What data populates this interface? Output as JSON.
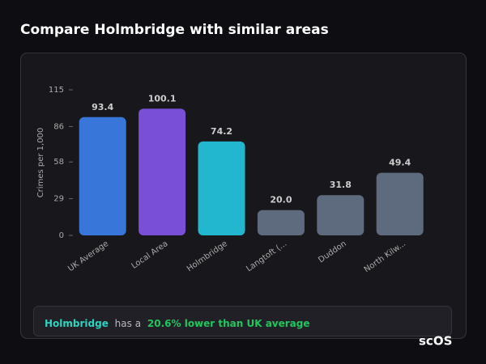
{
  "header": {
    "title": "Compare Holmbridge with similar areas"
  },
  "chart_data": {
    "type": "bar",
    "y_label": "Crimes per 1,000",
    "categories": [
      "UK Average",
      "Local Area",
      "Holmbridge",
      "Langtoft (...",
      "Duddon",
      "North Kilw..."
    ],
    "values": [
      93.4,
      100.1,
      74.2,
      20.0,
      31.8,
      49.4
    ],
    "value_labels": [
      "93.4",
      "100.1",
      "74.2",
      "20.0",
      "31.8",
      "49.4"
    ],
    "colors": [
      "#3877d9",
      "#7a4fd8",
      "#22b7cf",
      "#5e6a7d",
      "#5e6a7d",
      "#5e6a7d"
    ],
    "ylim": [
      0,
      115
    ],
    "yticks": [
      0,
      29,
      58,
      86,
      115
    ],
    "grid": false
  },
  "callout": {
    "place": "Holmbridge",
    "text": "has a",
    "highlight": "20.6% lower than UK average"
  },
  "logo": "scOS"
}
